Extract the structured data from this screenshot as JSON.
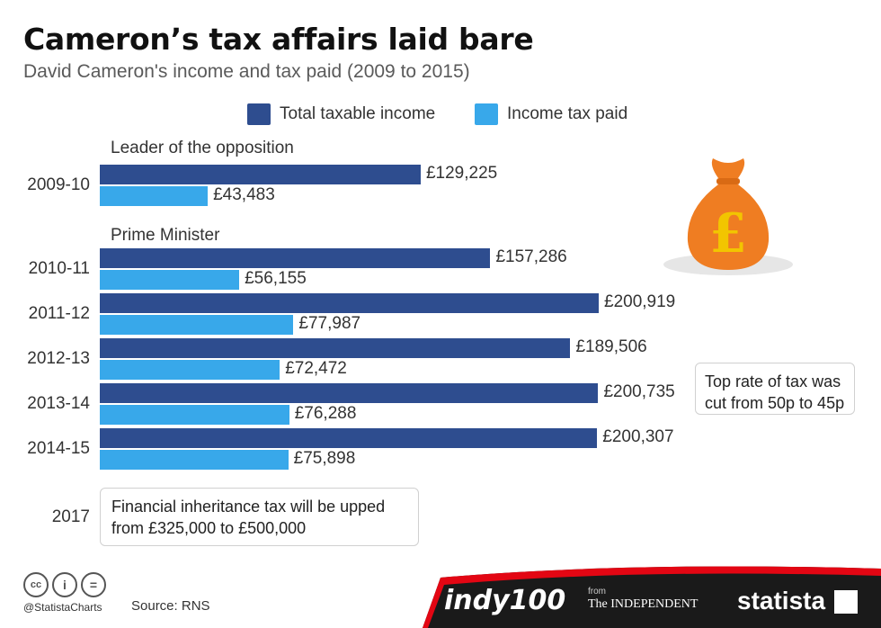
{
  "header": {
    "title": "Cameron’s tax affairs laid bare",
    "subtitle": "David Cameron's income and tax paid (2009 to 2015)"
  },
  "legend": {
    "income": "Total taxable income",
    "tax": "Income tax paid"
  },
  "colors": {
    "income": "#2e4d8f",
    "tax": "#38a8ea",
    "bag": "#ef7d22",
    "pound": "#f2c500",
    "footer": "#1a1a1a",
    "footer_red": "#e30613"
  },
  "sections": {
    "opposition": "Leader of the opposition",
    "pm": "Prime Minister"
  },
  "chart_data": {
    "type": "bar",
    "orientation": "horizontal",
    "categories": [
      "2009-10",
      "2010-11",
      "2011-12",
      "2012-13",
      "2013-14",
      "2014-15"
    ],
    "series": [
      {
        "name": "Total taxable income",
        "values": [
          129225,
          157286,
          200919,
          189506,
          200735,
          200307
        ]
      },
      {
        "name": "Income tax paid",
        "values": [
          43483,
          56155,
          77987,
          72472,
          76288,
          75898
        ]
      }
    ],
    "labels_income": [
      "£129,225",
      "£157,286",
      "£200,919",
      "£189,506",
      "£200,735",
      "£200,307"
    ],
    "labels_tax": [
      "£43,483",
      "£56,155",
      "£77,987",
      "£72,472",
      "£76,288",
      "£75,898"
    ],
    "xlim": [
      0,
      200919
    ],
    "grid": false
  },
  "notes": {
    "top_rate": "Top rate of tax was cut from 50p to 45p",
    "year_2017": "2017",
    "inheritance_line1": "Financial inheritance tax will be upped",
    "inheritance_line2": "from  £325,000 to  £500,000"
  },
  "icons": {
    "bag": "money-bag-icon",
    "pound_symbol": "£"
  },
  "footer": {
    "handle": "@StatistaCharts",
    "source": "Source: RNS",
    "indy": "indy100",
    "from": "from",
    "independent": "The INDEPENDENT",
    "statista": "statista"
  }
}
